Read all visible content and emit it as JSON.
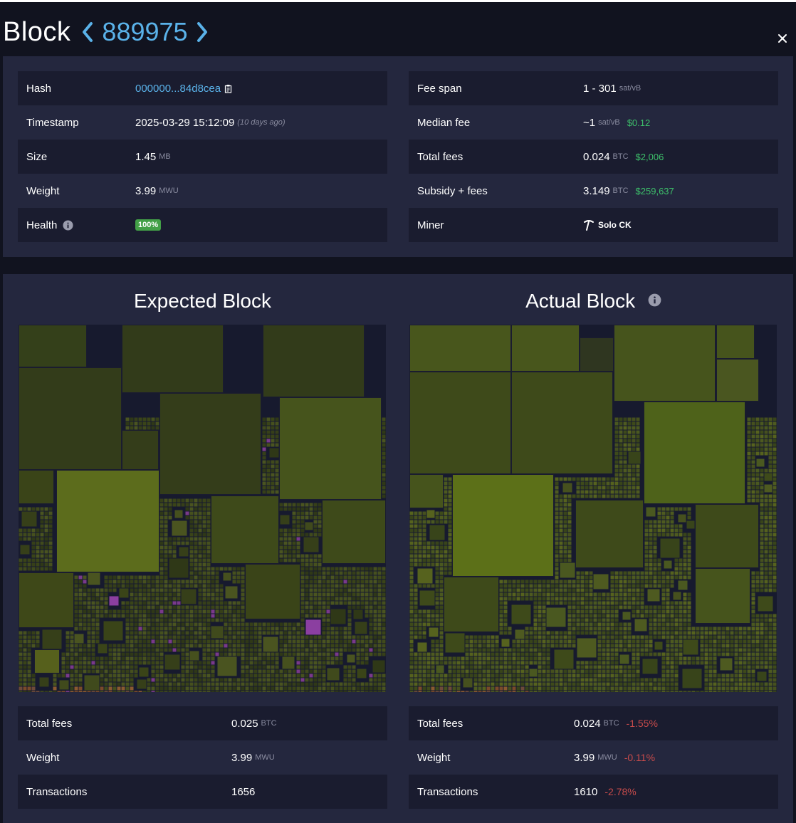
{
  "header": {
    "title": "Block",
    "height": "889975"
  },
  "details_left": [
    {
      "label": "Hash",
      "value": "000000...84d8cea"
    },
    {
      "label": "Timestamp",
      "value": "2025-03-29 15:12:09",
      "note": "(10 days ago)"
    },
    {
      "label": "Size",
      "value": "1.45",
      "unit": "MB"
    },
    {
      "label": "Weight",
      "value": "3.99",
      "unit": "MWU"
    },
    {
      "label": "Health",
      "value": "100%"
    }
  ],
  "details_right": [
    {
      "label": "Fee span",
      "value": "1 - 301",
      "unit": "sat/vB"
    },
    {
      "label": "Median fee",
      "value": "~1",
      "unit": "sat/vB",
      "fiat": "$0.12"
    },
    {
      "label": "Total fees",
      "value": "0.024",
      "unit": "BTC",
      "fiat": "$2,006"
    },
    {
      "label": "Subsidy + fees",
      "value": "3.149",
      "unit": "BTC",
      "fiat": "$259,637"
    },
    {
      "label": "Miner",
      "value": "Solo CK"
    }
  ],
  "expected": {
    "title": "Expected Block",
    "rows": [
      {
        "label": "Total fees",
        "value": "0.025",
        "unit": "BTC"
      },
      {
        "label": "Weight",
        "value": "3.99",
        "unit": "MWU"
      },
      {
        "label": "Transactions",
        "value": "1656"
      }
    ]
  },
  "actual": {
    "title": "Actual Block",
    "rows": [
      {
        "label": "Total fees",
        "value": "0.024",
        "unit": "BTC",
        "delta": "-1.55%"
      },
      {
        "label": "Weight",
        "value": "3.99",
        "unit": "MWU",
        "delta": "-0.11%"
      },
      {
        "label": "Transactions",
        "value": "1610",
        "delta": "-2.78%"
      }
    ]
  },
  "colors": {
    "accent": "#5ab2e9",
    "fiat": "#3dbf6a",
    "negative": "#c74b4b",
    "panel": "#24273e",
    "row_dark": "#1a1c2f",
    "health_badge": "#43a047"
  }
}
